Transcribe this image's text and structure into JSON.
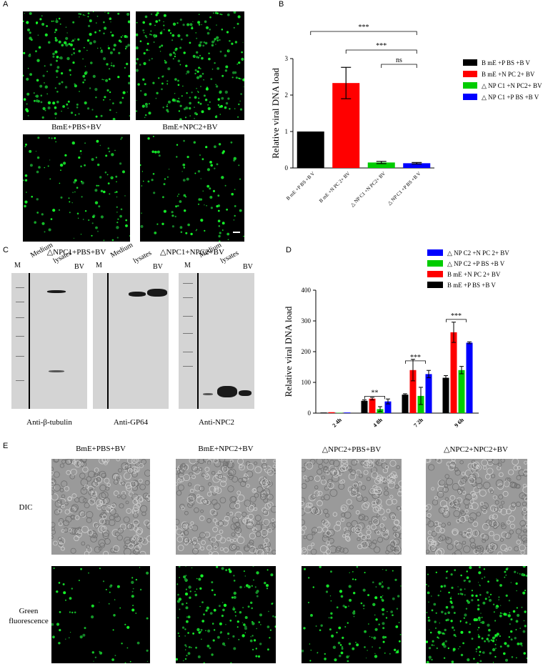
{
  "panels": {
    "A": {
      "letter": "A",
      "captions": [
        "BmE+PBS+BV",
        "BmE+NPC2+BV",
        "△NPC1+PBS+BV",
        "△NPC1+NPC2+BV"
      ]
    },
    "B": {
      "letter": "B",
      "significance": [
        "***",
        "***",
        "ns"
      ]
    },
    "C": {
      "letter": "C",
      "lanes": [
        "M",
        "Medium",
        "lysates",
        "BV"
      ],
      "antibodies": [
        "Anti-β-tubulin",
        "Anti-GP64",
        "Anti-NPC2"
      ]
    },
    "D": {
      "letter": "D",
      "significance": [
        "**",
        "***",
        "***"
      ]
    },
    "E": {
      "letter": "E",
      "column_titles": [
        "BmE+PBS+BV",
        "BmE+NPC2+BV",
        "△NPC2+PBS+BV",
        "△NPC2+NPC2+BV"
      ],
      "row_labels": [
        "DIC",
        "Green fluorescence"
      ]
    }
  },
  "chart_data": [
    {
      "panel": "B",
      "type": "bar",
      "categories": [
        "B mE +P BS +B V",
        "B mE +N PC 2+ BV",
        "△ NP C1 +N PC2+ BV",
        "△ NP C1 +P BS +B V"
      ],
      "values": [
        1.0,
        2.33,
        0.15,
        0.13
      ],
      "errors": [
        0.0,
        0.43,
        0.03,
        0.02
      ],
      "colors": [
        "#000000",
        "#ff0000",
        "#00cc00",
        "#0000ff"
      ],
      "ylabel": "Relative viral DNA load",
      "ylim": [
        0,
        3
      ],
      "yticks": [
        0,
        1,
        2,
        3
      ],
      "legend": [
        "B mE +P BS +B V",
        "B mE +N PC 2+ BV",
        "△ NP C1 +N PC2+ BV",
        "△ NP C1 +P BS +B V"
      ],
      "legend_position": "right"
    },
    {
      "panel": "D",
      "type": "bar",
      "categories": [
        "2 4h",
        "4 8h",
        "7 2h",
        "9 6h"
      ],
      "series": [
        {
          "name": "B mE +P BS +B V",
          "color": "#000000",
          "values": [
            2,
            40,
            60,
            115
          ],
          "errors": [
            0,
            3,
            3,
            7
          ]
        },
        {
          "name": "B mE +N PC 2+ BV",
          "color": "#ff0000",
          "values": [
            3,
            47,
            140,
            263
          ],
          "errors": [
            0,
            4,
            35,
            33
          ]
        },
        {
          "name": "△ NP C2 +P BS +B V",
          "color": "#00cc00",
          "values": [
            1,
            13,
            56,
            140
          ],
          "errors": [
            0,
            8,
            28,
            12
          ]
        },
        {
          "name": "△ NP C2 +N PC 2+ BV",
          "color": "#0000ff",
          "values": [
            2,
            38,
            127,
            229
          ],
          "errors": [
            0,
            8,
            12,
            3
          ]
        }
      ],
      "legend_order": [
        "△ NP C2 +N PC 2+ BV",
        "△ NP C2 +P BS +B V",
        "B mE +N PC 2+ BV",
        "B mE +P BS +B V"
      ],
      "ylabel": "Relative viral DNA load",
      "ylim": [
        0,
        400
      ],
      "yticks": [
        0,
        100,
        200,
        300,
        400
      ],
      "legend_position": "top-right"
    }
  ]
}
